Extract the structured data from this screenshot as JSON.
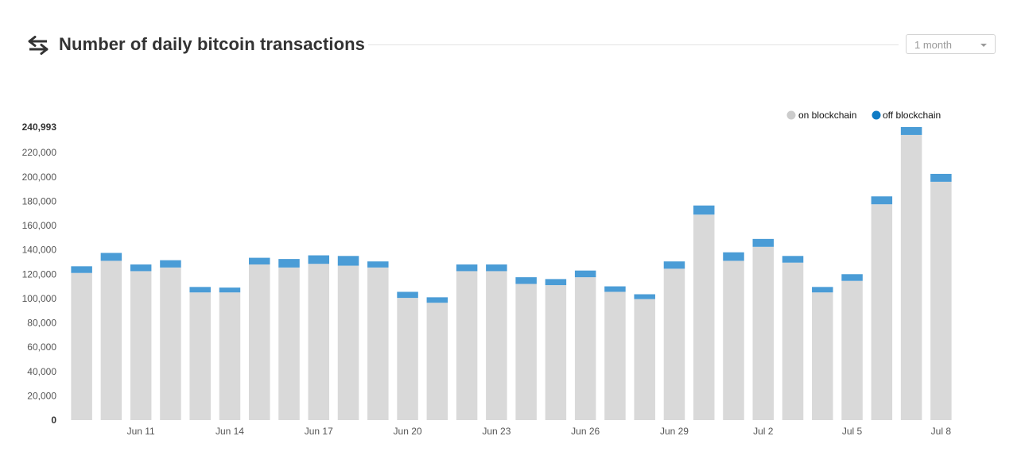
{
  "header": {
    "title": "Number of daily bitcoin transactions",
    "icon": "swap-arrows-icon",
    "range_select": {
      "value": "1 month"
    }
  },
  "colors": {
    "on_blockchain": "#d9d9d9",
    "off_blockchain": "#4a9cd6",
    "legend_off_dot": "#0f7bc4",
    "text": "#333333",
    "axis_text": "#555555"
  },
  "chart_data": {
    "type": "bar",
    "stacked": true,
    "title": "Number of daily bitcoin transactions",
    "ylim": [
      0,
      240993
    ],
    "yticks": [
      {
        "value": 240993,
        "label": "240,993"
      },
      {
        "value": 220000,
        "label": "220,000"
      },
      {
        "value": 200000,
        "label": "200,000"
      },
      {
        "value": 180000,
        "label": "180,000"
      },
      {
        "value": 160000,
        "label": "160,000"
      },
      {
        "value": 140000,
        "label": "140,000"
      },
      {
        "value": 120000,
        "label": "120,000"
      },
      {
        "value": 100000,
        "label": "100,000"
      },
      {
        "value": 80000,
        "label": "80,000"
      },
      {
        "value": 60000,
        "label": "60,000"
      },
      {
        "value": 40000,
        "label": "40,000"
      },
      {
        "value": 20000,
        "label": "20,000"
      },
      {
        "value": 0,
        "label": "0"
      }
    ],
    "categories": [
      "Jun 9",
      "Jun 10",
      "Jun 11",
      "Jun 12",
      "Jun 13",
      "Jun 14",
      "Jun 15",
      "Jun 16",
      "Jun 17",
      "Jun 18",
      "Jun 19",
      "Jun 20",
      "Jun 21",
      "Jun 22",
      "Jun 23",
      "Jun 24",
      "Jun 25",
      "Jun 26",
      "Jun 27",
      "Jun 28",
      "Jun 29",
      "Jun 30",
      "Jul 1",
      "Jul 2",
      "Jul 3",
      "Jul 4",
      "Jul 5",
      "Jul 6",
      "Jul 7",
      "Jul 8"
    ],
    "xtick_labels": [
      "",
      "",
      "Jun 11",
      "",
      "",
      "Jun 14",
      "",
      "",
      "Jun 17",
      "",
      "",
      "Jun 20",
      "",
      "",
      "Jun 23",
      "",
      "",
      "Jun 26",
      "",
      "",
      "Jun 29",
      "",
      "",
      "Jul 2",
      "",
      "",
      "Jul 5",
      "",
      "",
      "Jul 8"
    ],
    "legend": {
      "placement": "top-right",
      "items": [
        "on blockchain",
        "off blockchain"
      ]
    },
    "series": [
      {
        "name": "on blockchain",
        "values": [
          121000,
          131000,
          122500,
          125500,
          105000,
          105000,
          128000,
          125500,
          128500,
          127000,
          125500,
          100500,
          96500,
          122500,
          122500,
          112000,
          111000,
          117500,
          105500,
          99500,
          124500,
          169000,
          131000,
          142500,
          129500,
          105000,
          114500,
          177500,
          234500,
          196000
        ]
      },
      {
        "name": "off blockchain",
        "values": [
          5500,
          6500,
          5500,
          6000,
          4500,
          4000,
          5500,
          7000,
          7000,
          8000,
          5000,
          5000,
          4500,
          5500,
          5500,
          5500,
          5000,
          5500,
          4500,
          4000,
          6000,
          7500,
          7000,
          6500,
          5500,
          4500,
          5500,
          6500,
          6500,
          6500
        ]
      }
    ]
  }
}
